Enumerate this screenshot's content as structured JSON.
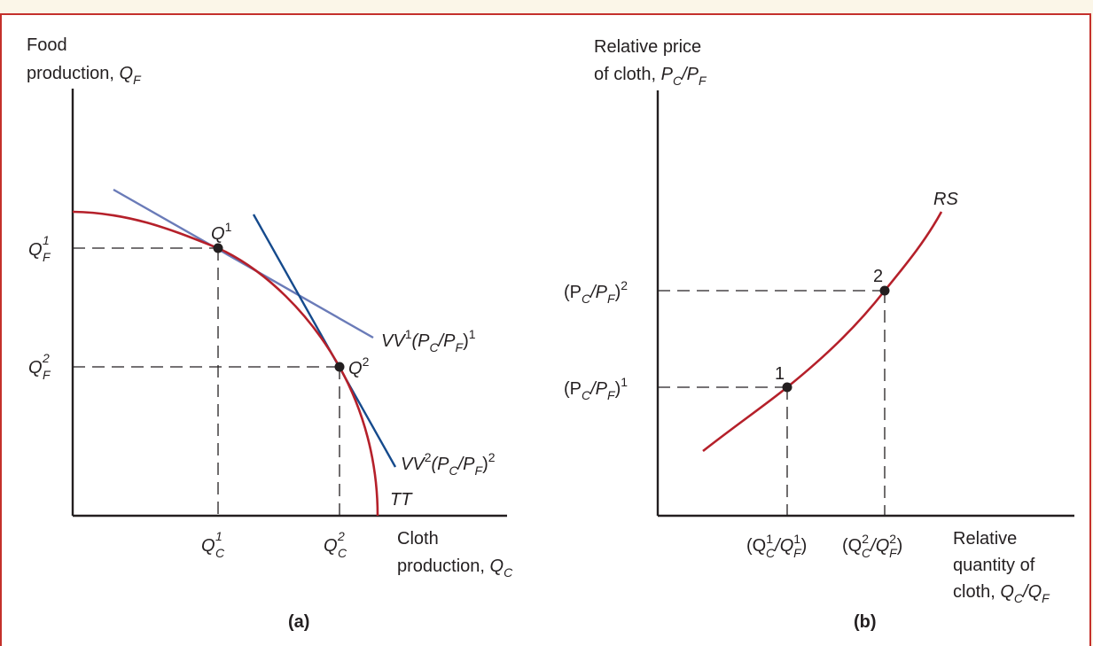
{
  "panel_a": {
    "caption": "(a)",
    "y_axis_label_line1": "Food",
    "y_axis_label_line2": "production, ",
    "y_axis_symbol": "Q",
    "y_axis_symbol_sub": "F",
    "x_axis_label_line1": "Cloth",
    "x_axis_label_line2": "production, ",
    "x_axis_symbol": "Q",
    "x_axis_symbol_sub": "C",
    "point1": {
      "name": "Q",
      "sup": "1"
    },
    "point2": {
      "name": "Q",
      "sup": "2"
    },
    "qf1": {
      "base": "Q",
      "sup": "1",
      "sub": "F"
    },
    "qf2": {
      "base": "Q",
      "sup": "2",
      "sub": "F"
    },
    "qc1": {
      "base": "Q",
      "sup": "1",
      "sub": "C"
    },
    "qc2": {
      "base": "Q",
      "sup": "2",
      "sub": "C"
    },
    "vv1_label": {
      "vv": "VV",
      "sup": "1",
      "p": "(P",
      "c": "C",
      "slash": "/P",
      "f": "F",
      "close": ")",
      "exp": "1"
    },
    "vv2_label": {
      "vv": "VV",
      "sup": "2",
      "p": "(P",
      "c": "C",
      "slash": "/P",
      "f": "F",
      "close": ")",
      "exp": "2"
    },
    "curve_label": "TT"
  },
  "panel_b": {
    "caption": "(b)",
    "y_axis_label_line1": "Relative price",
    "y_axis_label_line2": "of cloth, ",
    "y_axis_symbol": "P",
    "y_axis_symbol_sub_c": "C",
    "y_axis_symbol_mid": "/P",
    "y_axis_symbol_sub_f": "F",
    "x_axis_label_line1": "Relative",
    "x_axis_label_line2": "quantity of",
    "x_axis_label_line3": "cloth, ",
    "x_axis_symbol": "Q",
    "x_axis_sub_c": "C",
    "x_axis_mid": "/Q",
    "x_axis_sub_f": "F",
    "curve_label": "RS",
    "point1_label": "1",
    "point2_label": "2",
    "price1": {
      "open": "(P",
      "c": "C",
      "mid": "/P",
      "f": "F",
      "close": ")",
      "exp": "1"
    },
    "price2": {
      "open": "(P",
      "c": "C",
      "mid": "/P",
      "f": "F",
      "close": ")",
      "exp": "2"
    },
    "qty1": {
      "open": "(Q",
      "sup1": "1",
      "c": "C",
      "mid": "/Q",
      "sup2": "1",
      "f": "F",
      "close": ")"
    },
    "qty2": {
      "open": "(Q",
      "sup1": "2",
      "c": "C",
      "mid": "/Q",
      "sup2": "2",
      "f": "F",
      "close": ")"
    }
  },
  "colors": {
    "frame": "#c4302b",
    "ppf_curve": "#b5202a",
    "vv1_line": "#6a7bb8",
    "vv2_line": "#154a8c",
    "background_band": "#fbf6e8"
  }
}
